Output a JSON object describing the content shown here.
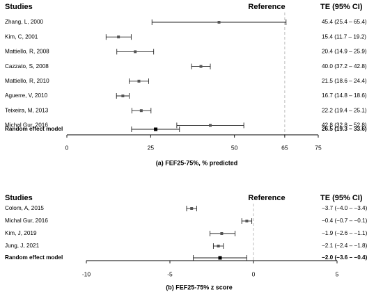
{
  "chart_data": [
    {
      "type": "forest",
      "headers": {
        "studies": "Studies",
        "reference": "Reference",
        "te": "TE (95% CI)"
      },
      "reference_value": 65,
      "xlim": [
        0,
        75
      ],
      "xticks": [
        "0",
        "25",
        "50",
        "65",
        "75"
      ],
      "xtick_values": [
        0,
        25,
        50,
        65,
        75
      ],
      "caption": "(a) FEF25-75%, % predicted",
      "rows": [
        {
          "study": "Zhang, L, 2000",
          "te": 45.4,
          "lo": 25.4,
          "hi": 65.4,
          "label": "45.4 (25.4 – 65.4)"
        },
        {
          "study": "Kim, C, 2001",
          "te": 15.4,
          "lo": 11.7,
          "hi": 19.2,
          "label": "15.4 (11.7 – 19.2)"
        },
        {
          "study": "Mattiello, R, 2008",
          "te": 20.4,
          "lo": 14.9,
          "hi": 25.9,
          "label": "20.4 (14.9 – 25.9)"
        },
        {
          "study": "Cazzato, S, 2008",
          "te": 40.0,
          "lo": 37.2,
          "hi": 42.8,
          "label": "40.0 (37.2 – 42.8)"
        },
        {
          "study": "Mattiello, R, 2010",
          "te": 21.5,
          "lo": 18.6,
          "hi": 24.4,
          "label": "21.5 (18.6 – 24.4)"
        },
        {
          "study": "Aguerre, V, 2010",
          "te": 16.7,
          "lo": 14.8,
          "hi": 18.6,
          "label": "16.7 (14.8 – 18.6)"
        },
        {
          "study": "Teixeira, M, 2013",
          "te": 22.2,
          "lo": 19.4,
          "hi": 25.1,
          "label": "22.2 (19.4 – 25.1)"
        },
        {
          "study": "Michal Gur, 2016",
          "te": 42.8,
          "lo": 32.8,
          "hi": 52.8,
          "label": "42.8 (32.8 – 52.8)"
        }
      ],
      "summary": {
        "study": "Random effect model",
        "te": 26.5,
        "lo": 19.3,
        "hi": 33.6,
        "label": "26.5 (19.3 – 33.6)"
      }
    },
    {
      "type": "forest",
      "headers": {
        "studies": "Studies",
        "reference": "Reference",
        "te": "TE (95% CI)"
      },
      "reference_value": 0,
      "xlim": [
        -10,
        5
      ],
      "xticks": [
        "-10",
        "-5",
        "0",
        "5"
      ],
      "xtick_values": [
        -10,
        -5,
        0,
        5
      ],
      "caption": "(b) FEF25-75% z score",
      "rows": [
        {
          "study": "Colom, A, 2015",
          "te": -3.7,
          "lo": -4.0,
          "hi": -3.4,
          "label": "−3.7 (−4.0 – −3.4)"
        },
        {
          "study": "Michal Gur, 2016",
          "te": -0.4,
          "lo": -0.7,
          "hi": -0.1,
          "label": "−0.4 (−0.7 – −0.1)"
        },
        {
          "study": "Kim, J, 2019",
          "te": -1.9,
          "lo": -2.6,
          "hi": -1.1,
          "label": "−1.9 (−2.6 – −1.1)"
        },
        {
          "study": "Jung, J, 2021",
          "te": -2.1,
          "lo": -2.4,
          "hi": -1.8,
          "label": "−2.1 (−2.4 – −1.8)"
        }
      ],
      "summary": {
        "study": "Random effect model",
        "te": -2.0,
        "lo": -3.6,
        "hi": -0.4,
        "label": "−2.0 (−3.6 – −0.4)"
      }
    }
  ]
}
